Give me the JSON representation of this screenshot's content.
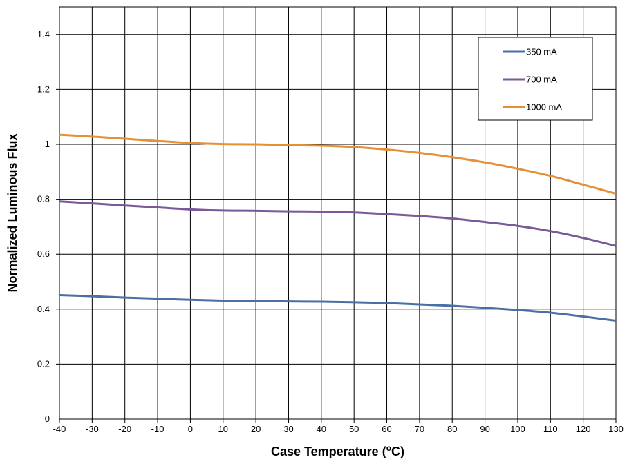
{
  "chart_data": {
    "type": "line",
    "title": "",
    "xlabel": "Case Temperature (",
    "xlabel_sup": "o",
    "xlabel_tail": "C)",
    "ylabel": "Normalized Luminous Flux",
    "xlim": [
      -40,
      130
    ],
    "ylim": [
      0,
      1.5
    ],
    "x_ticks": [
      -40,
      -30,
      -20,
      -10,
      0,
      10,
      20,
      30,
      40,
      50,
      60,
      70,
      80,
      90,
      100,
      110,
      120,
      130
    ],
    "x_tick_labels": [
      "-40",
      "-30",
      "-20",
      "-10",
      "0",
      "10",
      "20",
      "30",
      "40",
      "50",
      "60",
      "70",
      "80",
      "90",
      "100",
      "110",
      "120",
      "130"
    ],
    "y_ticks": [
      0,
      0.2,
      0.4,
      0.6,
      0.8,
      1,
      1.2,
      1.4
    ],
    "y_tick_labels": [
      "0",
      "0.2",
      "0.4",
      "0.6",
      "0.8",
      "1",
      "1.2",
      "1.4"
    ],
    "grid": true,
    "legend_position": "top-right",
    "x": [
      -40,
      -30,
      -20,
      -10,
      0,
      10,
      20,
      30,
      40,
      50,
      60,
      70,
      80,
      90,
      100,
      110,
      120,
      130
    ],
    "series": [
      {
        "name": "350 mA",
        "color": "#4a6fa5",
        "values": [
          0.451,
          0.447,
          0.442,
          0.438,
          0.434,
          0.431,
          0.43,
          0.428,
          0.427,
          0.425,
          0.422,
          0.417,
          0.412,
          0.405,
          0.397,
          0.387,
          0.373,
          0.358
        ]
      },
      {
        "name": "700 mA",
        "color": "#7b5898",
        "values": [
          0.792,
          0.785,
          0.777,
          0.77,
          0.763,
          0.759,
          0.758,
          0.756,
          0.755,
          0.752,
          0.746,
          0.739,
          0.73,
          0.717,
          0.703,
          0.684,
          0.659,
          0.63
        ]
      },
      {
        "name": "1000 mA",
        "color": "#e59034",
        "values": [
          1.035,
          1.028,
          1.02,
          1.012,
          1.005,
          1.001,
          1.0,
          0.997,
          0.995,
          0.99,
          0.981,
          0.969,
          0.953,
          0.934,
          0.911,
          0.885,
          0.853,
          0.82
        ]
      }
    ]
  }
}
